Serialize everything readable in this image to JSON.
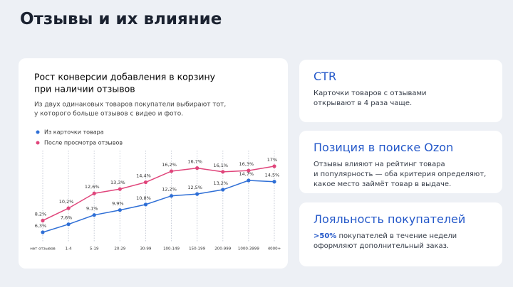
{
  "header": {
    "title": "Отзывы и их влияние"
  },
  "chart_data": {
    "type": "line",
    "title": [
      "Рост конверсии добавления в корзину",
      "при наличии отзывов"
    ],
    "subtitle": [
      "Из двух одинаковых товаров покупатели выбирают тот,",
      "у которого больше отзывов с видео и фото."
    ],
    "categories": [
      "нет отзывов",
      "1-4",
      "5-19",
      "20-29",
      "30-99",
      "100-149",
      "150-199",
      "200-999",
      "1000-3999",
      "4000+"
    ],
    "series": [
      {
        "name": "Из карточки товара",
        "color": "#2f6fd6",
        "values": [
          6.3,
          7.6,
          9.1,
          9.9,
          10.8,
          12.2,
          12.5,
          13.2,
          14.7,
          14.5
        ],
        "value_labels": [
          "6,3%",
          "7,6%",
          "9,1%",
          "9,9%",
          "10,8%",
          "12,2%",
          "12,5%",
          "13,2%",
          "14,7%",
          "14,5%"
        ]
      },
      {
        "name": "После просмотра отзывов",
        "color": "#e0457b",
        "values": [
          8.2,
          10.2,
          12.6,
          13.3,
          14.4,
          16.2,
          16.7,
          16.1,
          16.3,
          17
        ],
        "value_labels": [
          "8,2%",
          "10,2%",
          "12,6%",
          "13,3%",
          "14,4%",
          "16,2%",
          "16,7%",
          "16,1%",
          "16,3%",
          "17%"
        ]
      }
    ],
    "grid": true
  },
  "cards": [
    {
      "title": "CTR",
      "lines": [
        "Карточки товаров с отзывами",
        "открывают в 4 раза чаще."
      ]
    },
    {
      "title": "Позиция в поиске Ozon",
      "lines": [
        "Отзывы влияют на рейтинг товара",
        "и популярность — оба критерия определяют,",
        "какое место займёт товар в выдаче."
      ]
    },
    {
      "title": "Лояльность покупателей",
      "highlight": ">50%",
      "lines": [
        "покупателей в течение недели",
        "оформляют дополнительный заказ."
      ]
    }
  ]
}
